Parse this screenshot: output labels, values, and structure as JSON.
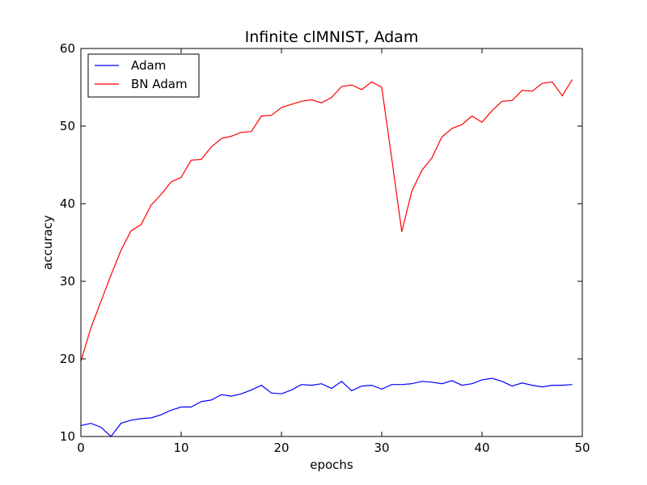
{
  "chart_data": {
    "type": "line",
    "title": "Infinite clMNIST, Adam",
    "xlabel": "epochs",
    "ylabel": "accuracy",
    "xlim": [
      0,
      50
    ],
    "ylim": [
      10,
      60
    ],
    "xticks": [
      0,
      10,
      20,
      30,
      40,
      50
    ],
    "yticks": [
      10,
      20,
      30,
      40,
      50,
      60
    ],
    "grid": false,
    "legend_position": "top-left",
    "x": [
      0,
      1,
      2,
      3,
      4,
      5,
      6,
      7,
      8,
      9,
      10,
      11,
      12,
      13,
      14,
      15,
      16,
      17,
      18,
      19,
      20,
      21,
      22,
      23,
      24,
      25,
      26,
      27,
      28,
      29,
      30,
      31,
      32,
      33,
      34,
      35,
      36,
      37,
      38,
      39,
      40,
      41,
      42,
      43,
      44,
      45,
      46,
      47,
      48,
      49
    ],
    "series": [
      {
        "name": "Adam",
        "color": "#0000ff",
        "values": [
          11.4,
          11.7,
          11.2,
          10.0,
          11.7,
          12.1,
          12.3,
          12.4,
          12.8,
          13.4,
          13.8,
          13.8,
          14.5,
          14.7,
          15.4,
          15.2,
          15.5,
          16.0,
          16.6,
          15.6,
          15.5,
          16.0,
          16.7,
          16.6,
          16.8,
          16.2,
          17.1,
          15.9,
          16.5,
          16.6,
          16.1,
          16.7,
          16.7,
          16.8,
          17.1,
          17.0,
          16.8,
          17.2,
          16.6,
          16.8,
          17.3,
          17.5,
          17.1,
          16.5,
          16.9,
          16.6,
          16.4,
          16.6,
          16.6,
          16.7
        ]
      },
      {
        "name": "BN Adam",
        "color": "#ff0000",
        "values": [
          19.7,
          24.0,
          27.4,
          30.8,
          34.0,
          36.5,
          37.3,
          39.8,
          41.2,
          42.8,
          43.4,
          45.6,
          45.7,
          47.3,
          48.4,
          48.7,
          49.2,
          49.3,
          51.3,
          51.4,
          52.4,
          52.8,
          53.2,
          53.4,
          53.0,
          53.7,
          55.1,
          55.3,
          54.7,
          55.7,
          55.0,
          45.8,
          36.4,
          41.6,
          44.3,
          45.9,
          48.6,
          49.7,
          50.2,
          51.3,
          50.5,
          52.0,
          53.2,
          53.3,
          54.6,
          54.5,
          55.5,
          55.7,
          53.9,
          56.0
        ]
      }
    ]
  }
}
